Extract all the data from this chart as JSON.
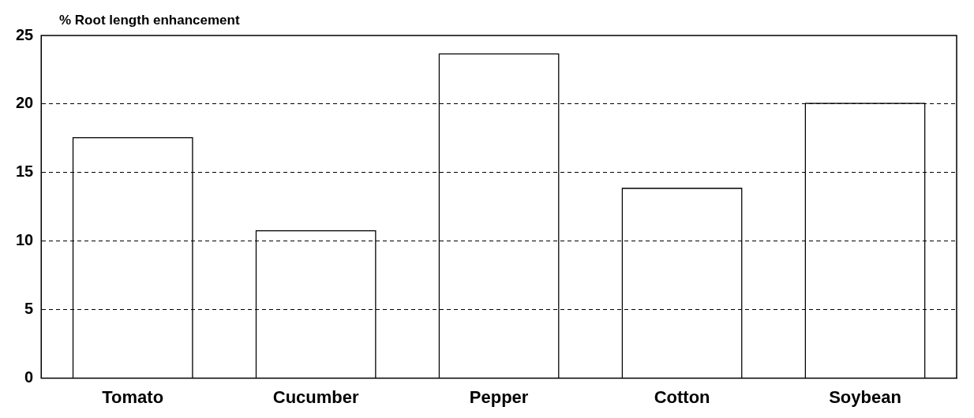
{
  "chart_data": {
    "type": "bar",
    "ylabel": "% Root length enhancement",
    "categories": [
      "Tomato",
      "Cucumber",
      "Pepper",
      "Cotton",
      "Soybean"
    ],
    "values": [
      17.6,
      10.8,
      23.7,
      13.9,
      20.1
    ],
    "color": "#000000",
    "ylim": [
      0,
      25
    ],
    "yticks": [
      0,
      5,
      10,
      15,
      20,
      25
    ],
    "grid": "y"
  }
}
